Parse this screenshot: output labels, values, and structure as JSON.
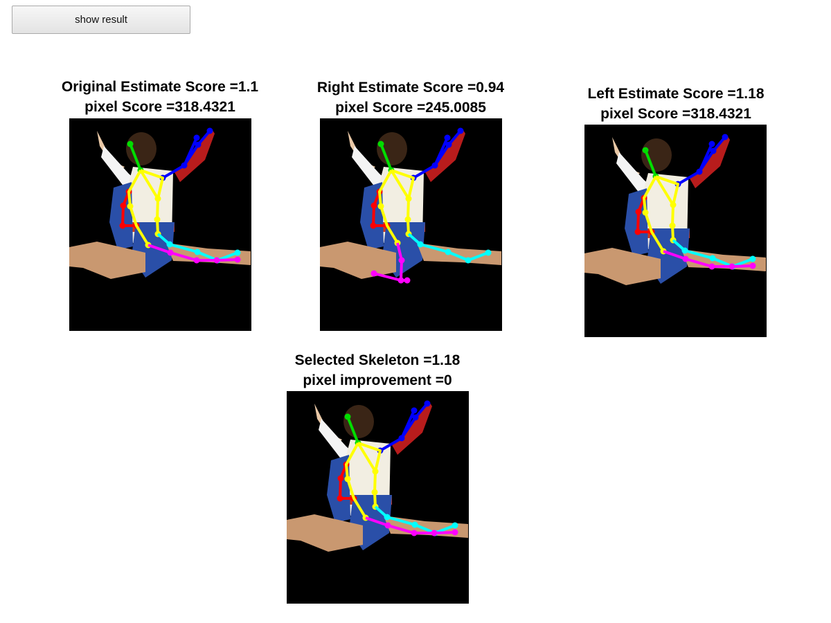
{
  "toolbar": {
    "show_result_label": "show result"
  },
  "panels": [
    {
      "id": "original",
      "title_line1": "Original Estimate Score =1.1",
      "title_line2": "pixel Score =318.4321"
    },
    {
      "id": "right",
      "title_line1": "Right Estimate Score =0.94",
      "title_line2": "pixel Score =245.0085"
    },
    {
      "id": "left",
      "title_line1": "Left Estimate Score =1.18",
      "title_line2": "pixel Score =318.4321"
    },
    {
      "id": "selected",
      "title_line1": "Selected Skeleton =1.18",
      "title_line2": "pixel improvement =0"
    }
  ],
  "colors": {
    "background": "#000000",
    "head": "#00dd00",
    "torso": "#ffff00",
    "right_arm": "#0000ff",
    "left_arm": "#ff0000",
    "right_leg": "#00ffff",
    "left_leg": "#ff00ff"
  }
}
